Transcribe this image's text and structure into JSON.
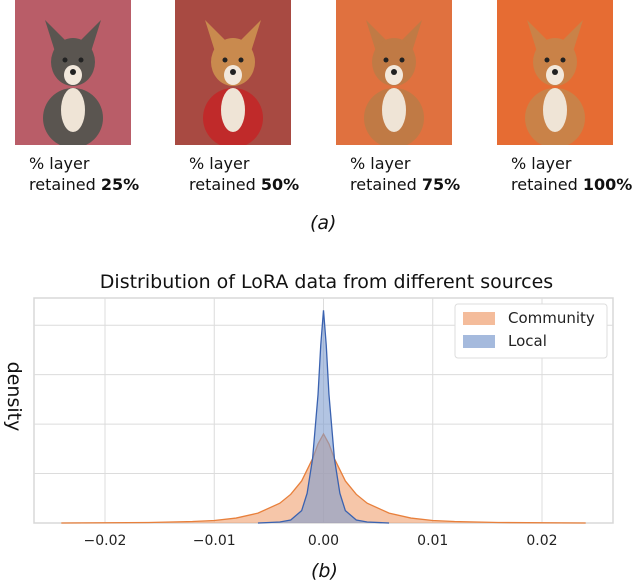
{
  "panel_a": {
    "label": "(a)",
    "images": [
      {
        "caption_line1": "% layer",
        "caption_prefix": "retained ",
        "caption_value": "25%",
        "bg": "#b95d68",
        "dog": "#5a5550"
      },
      {
        "caption_line1": "% layer",
        "caption_prefix": "retained ",
        "caption_value": "50%",
        "bg": "#a84a42",
        "dog": "#c98a4e"
      },
      {
        "caption_line1": "% layer",
        "caption_prefix": "retained ",
        "caption_value": "75%",
        "bg": "#e0713f",
        "dog": "#c07a45"
      },
      {
        "caption_line1": "% layer",
        "caption_prefix": "retained ",
        "caption_value": "100%",
        "bg": "#e66c33",
        "dog": "#c98248"
      }
    ]
  },
  "panel_b": {
    "label": "(b)"
  },
  "chart_data": {
    "type": "area",
    "title": "Distribution of LoRA data from different sources",
    "xlabel": "",
    "ylabel": "density",
    "xlim": [
      -0.0265,
      0.0265
    ],
    "ylim": [
      0,
      455
    ],
    "xticks": [
      -0.02,
      -0.01,
      0.0,
      0.01,
      0.02
    ],
    "xtick_labels": [
      "−0.02",
      "−0.01",
      "0.00",
      "0.01",
      "0.02"
    ],
    "yticks": [
      100,
      200,
      300,
      400
    ],
    "ytick_labels_shown": false,
    "grid": true,
    "legend_placement": "top-right",
    "series": [
      {
        "name": "Community",
        "color": "#f0a070",
        "line_color": "#e8803c",
        "x": [
          -0.024,
          -0.016,
          -0.012,
          -0.01,
          -0.008,
          -0.006,
          -0.004,
          -0.003,
          -0.002,
          -0.001,
          -0.0005,
          0,
          0.0005,
          0.001,
          0.002,
          0.003,
          0.004,
          0.006,
          0.008,
          0.01,
          0.012,
          0.016,
          0.024
        ],
        "y": [
          0,
          1,
          3,
          5,
          10,
          20,
          40,
          58,
          85,
          130,
          160,
          180,
          160,
          130,
          85,
          58,
          40,
          20,
          10,
          5,
          3,
          1,
          0
        ]
      },
      {
        "name": "Local",
        "color": "#7f9ccf",
        "line_color": "#3a62b0",
        "x": [
          -0.006,
          -0.004,
          -0.003,
          -0.002,
          -0.0015,
          -0.001,
          -0.0005,
          -0.00025,
          0,
          0.00025,
          0.0005,
          0.001,
          0.0015,
          0.002,
          0.003,
          0.004,
          0.006
        ],
        "y": [
          0,
          2,
          6,
          25,
          60,
          130,
          260,
          360,
          430,
          360,
          260,
          130,
          60,
          25,
          6,
          2,
          0
        ]
      }
    ]
  }
}
